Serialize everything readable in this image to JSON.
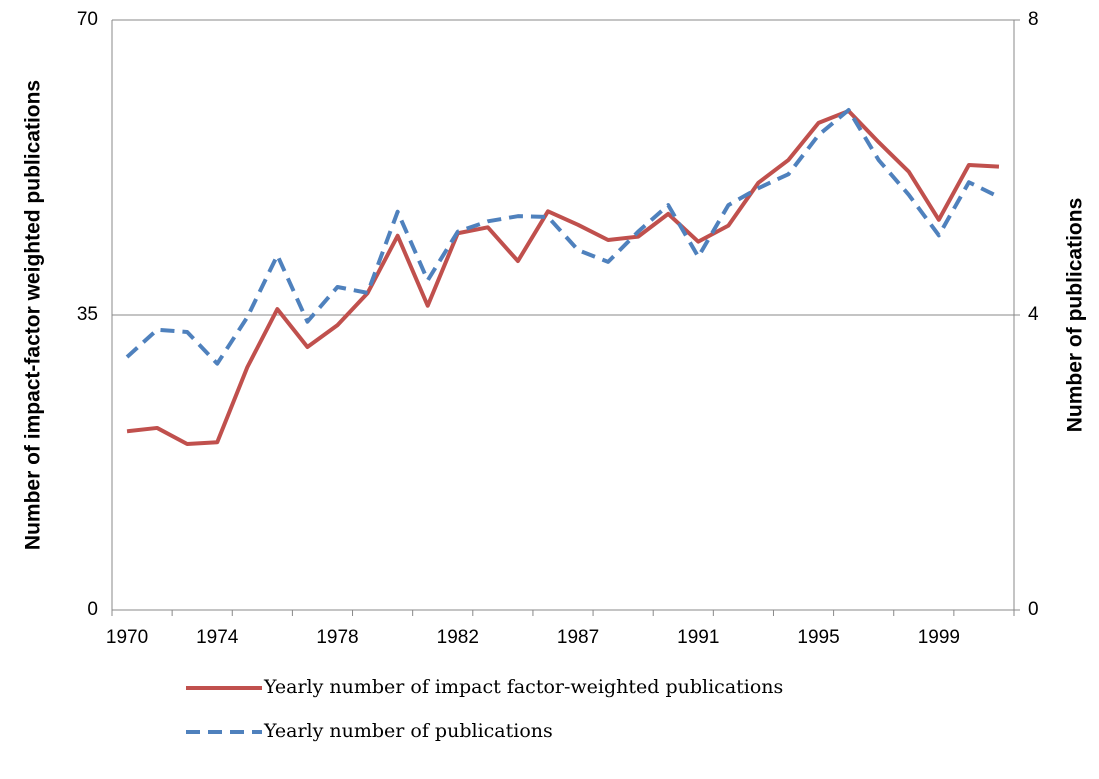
{
  "chart_data": {
    "type": "line",
    "categories": [
      "1970",
      null,
      null,
      "1974",
      null,
      null,
      null,
      "1978",
      null,
      null,
      null,
      "1982",
      null,
      null,
      null,
      "1987",
      null,
      null,
      null,
      "1991",
      null,
      null,
      null,
      "1995",
      null,
      null,
      null,
      "1999",
      null,
      null
    ],
    "y_label": "Number of impact-factor weighted publications",
    "y2_label": "Number of publications",
    "ylim": [
      0,
      70
    ],
    "yticks": [
      0,
      35,
      70
    ],
    "y2lim": [
      0,
      8
    ],
    "y2ticks": [
      0,
      4,
      8
    ],
    "grid": true,
    "legend": "bottom",
    "series": [
      {
        "name": "Yearly number of impact factor-weighted publications",
        "color": "#c0504d",
        "style": "solid",
        "values": [
          21.2,
          21.6,
          19.7,
          19.9,
          28.8,
          35.7,
          31.2,
          33.8,
          37.6,
          44.4,
          36.1,
          44.7,
          45.4,
          41.4,
          47.3,
          45.7,
          43.9,
          44.3,
          47.0,
          43.7,
          45.6,
          50.7,
          53.4,
          57.8,
          59.2,
          55.5,
          52.0,
          46.3,
          52.8,
          52.6
        ]
      },
      {
        "name": "Yearly number of publications",
        "color": "#4f81bd",
        "style": "dashed",
        "axis": "y2",
        "values": [
          3.43,
          3.8,
          3.77,
          3.34,
          3.97,
          4.81,
          3.91,
          4.38,
          4.3,
          5.4,
          4.47,
          5.13,
          5.27,
          5.34,
          5.33,
          4.88,
          4.72,
          5.13,
          5.49,
          4.79,
          5.49,
          5.72,
          5.91,
          6.44,
          6.78,
          6.1,
          5.63,
          5.08,
          5.8,
          5.6
        ]
      }
    ]
  }
}
